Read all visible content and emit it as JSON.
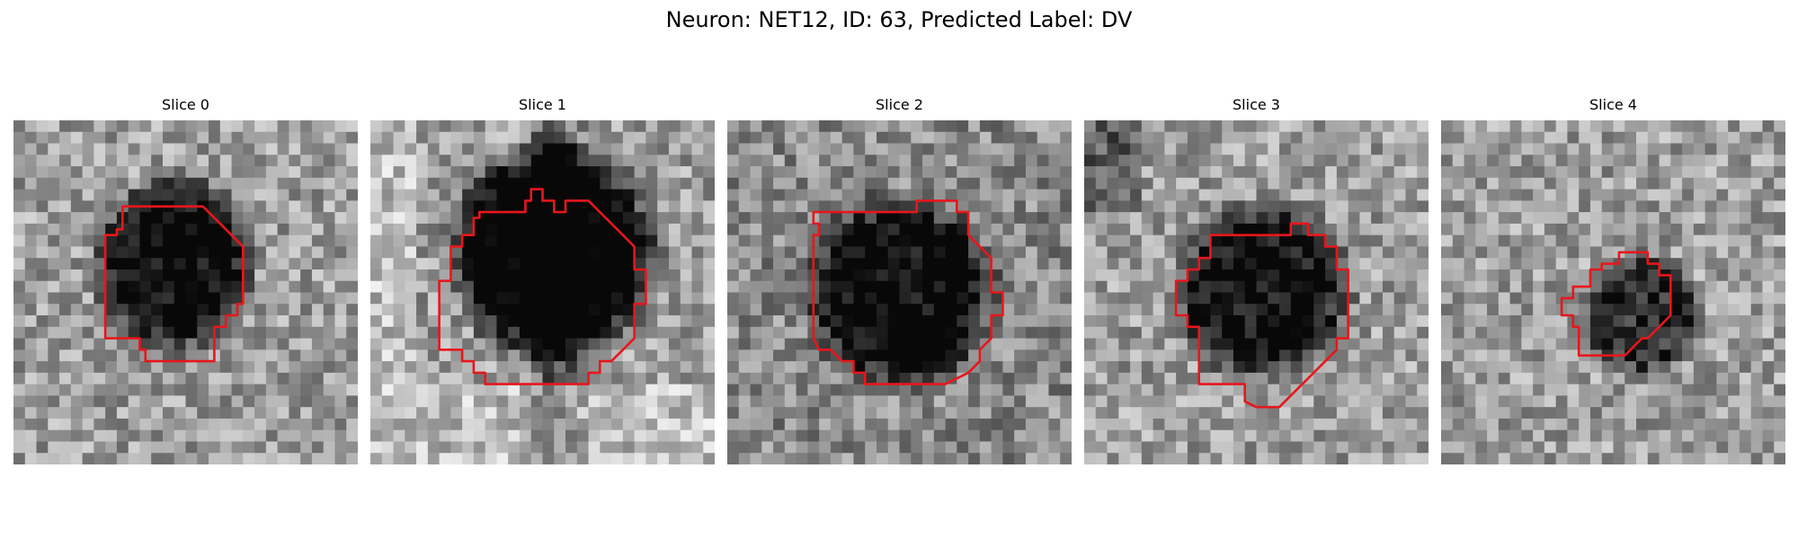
{
  "figure": {
    "title": "Neuron: NET12, ID: 63, Predicted Label: DV",
    "contour_color": "#e8161b"
  },
  "panels": [
    {
      "title": "Slice 0"
    },
    {
      "title": "Slice 1"
    },
    {
      "title": "Slice 2"
    },
    {
      "title": "Slice 3"
    },
    {
      "title": "Slice 4"
    }
  ]
}
